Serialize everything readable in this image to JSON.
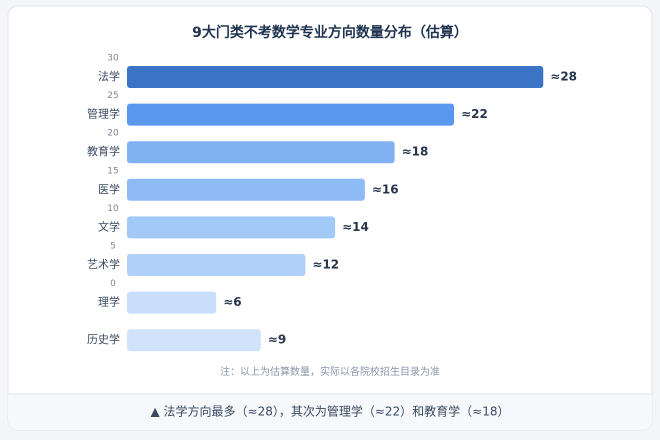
{
  "chart_data": {
    "type": "bar",
    "orientation": "horizontal",
    "title": "9大门类不考数学专业方向数量分布（估算）",
    "categories": [
      "法学",
      "管理学",
      "教育学",
      "医学",
      "文学",
      "艺术学",
      "理学",
      "历史学"
    ],
    "values": [
      28,
      22,
      18,
      16,
      14,
      12,
      6,
      9
    ],
    "value_labels": [
      "≈28",
      "≈22",
      "≈18",
      "≈16",
      "≈14",
      "≈12",
      "≈6",
      "≈9"
    ],
    "colors": [
      "#3b73c5",
      "#5a97ee",
      "#7fb1f3",
      "#8ebbf5",
      "#a3c9f7",
      "#b1d0f9",
      "#c9defb",
      "#d0e3fb"
    ],
    "xlim": [
      0,
      30
    ],
    "xticks": [
      30,
      25,
      20,
      15,
      10,
      5,
      0
    ],
    "note": "注：以上为估算数量，实际以各院校招生目录为准",
    "footer": "▲ 法学方向最多（≈28），其次为管理学（≈22）和教育学（≈18）"
  }
}
